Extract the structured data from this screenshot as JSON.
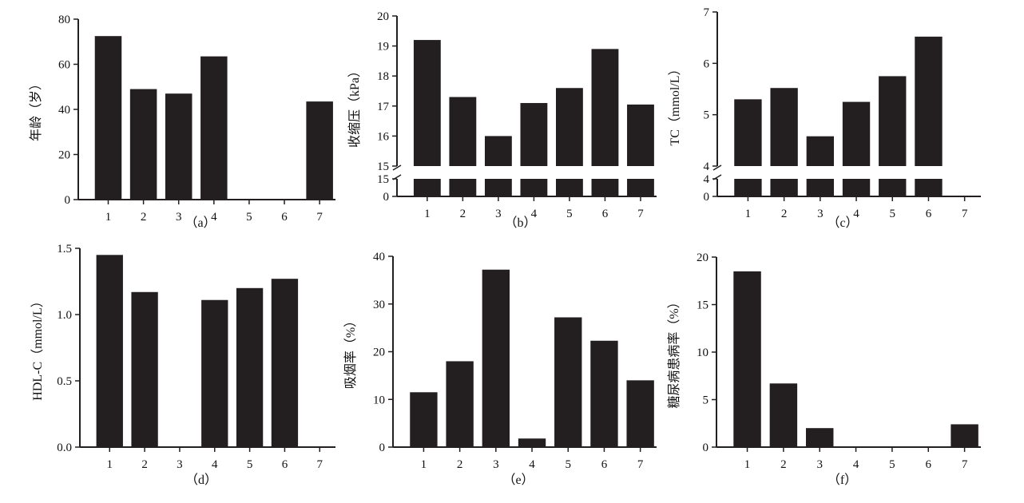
{
  "chart_data": [
    {
      "id": "a",
      "type": "bar",
      "caption": "（a）",
      "ylabel": "年龄（岁）",
      "categories": [
        "1",
        "2",
        "3",
        "4",
        "5",
        "6",
        "7"
      ],
      "values": [
        72.5,
        49,
        47,
        63.5,
        0,
        0,
        43.5
      ],
      "ylim": [
        0,
        80
      ],
      "yticks": [
        0,
        20,
        40,
        60,
        80
      ],
      "grid": false
    },
    {
      "id": "b",
      "type": "bar",
      "caption": "（b）",
      "ylabel": "收缩压（kPa）",
      "categories": [
        "1",
        "2",
        "3",
        "4",
        "5",
        "6",
        "7"
      ],
      "values": [
        19.2,
        17.3,
        16.0,
        17.1,
        17.6,
        18.9,
        17.05
      ],
      "ylim": [
        0,
        20
      ],
      "axis_break": [
        0,
        15
      ],
      "yticks_upper": [
        15,
        16,
        17,
        18,
        19,
        20
      ],
      "yticks_lower": [
        0,
        15
      ],
      "grid": false
    },
    {
      "id": "c",
      "type": "bar",
      "caption": "（c）",
      "ylabel": "TC（mmol/L）",
      "categories": [
        "1",
        "2",
        "3",
        "4",
        "5",
        "6",
        "7"
      ],
      "values": [
        5.3,
        5.52,
        4.58,
        5.25,
        5.75,
        6.52,
        0
      ],
      "ylim": [
        0,
        7
      ],
      "axis_break": [
        0,
        4
      ],
      "yticks_upper": [
        4,
        5,
        6,
        7
      ],
      "yticks_lower": [
        0,
        4
      ],
      "grid": false
    },
    {
      "id": "d",
      "type": "bar",
      "caption": "（d）",
      "ylabel": "HDL-C（mmol/L）",
      "categories": [
        "1",
        "2",
        "3",
        "4",
        "5",
        "6",
        "7"
      ],
      "values": [
        1.45,
        1.17,
        0,
        1.11,
        1.2,
        1.27,
        0
      ],
      "ylim": [
        0,
        1.5
      ],
      "yticks": [
        0,
        0.5,
        1.0,
        1.5
      ],
      "yticklabels": [
        "0.0",
        "0.5",
        "1.0",
        "1.5"
      ],
      "grid": false
    },
    {
      "id": "e",
      "type": "bar",
      "caption": "（e）",
      "ylabel": "吸烟率（%）",
      "categories": [
        "1",
        "2",
        "3",
        "4",
        "5",
        "6",
        "7"
      ],
      "values": [
        11.5,
        18,
        37.2,
        1.8,
        27.2,
        22.3,
        14
      ],
      "ylim": [
        0,
        40
      ],
      "yticks": [
        0,
        10,
        20,
        30,
        40
      ],
      "grid": false
    },
    {
      "id": "f",
      "type": "bar",
      "caption": "（f）",
      "ylabel": "糖尿病患病率（%）",
      "categories": [
        "1",
        "2",
        "3",
        "4",
        "5",
        "6",
        "7"
      ],
      "values": [
        18.5,
        6.7,
        2.0,
        0,
        0,
        0,
        2.4
      ],
      "ylim": [
        0,
        20
      ],
      "yticks": [
        0,
        5,
        10,
        15,
        20
      ],
      "grid": false
    }
  ],
  "colors": {
    "bar": "#231f20",
    "axis": "#231f20",
    "text": "#111111"
  }
}
